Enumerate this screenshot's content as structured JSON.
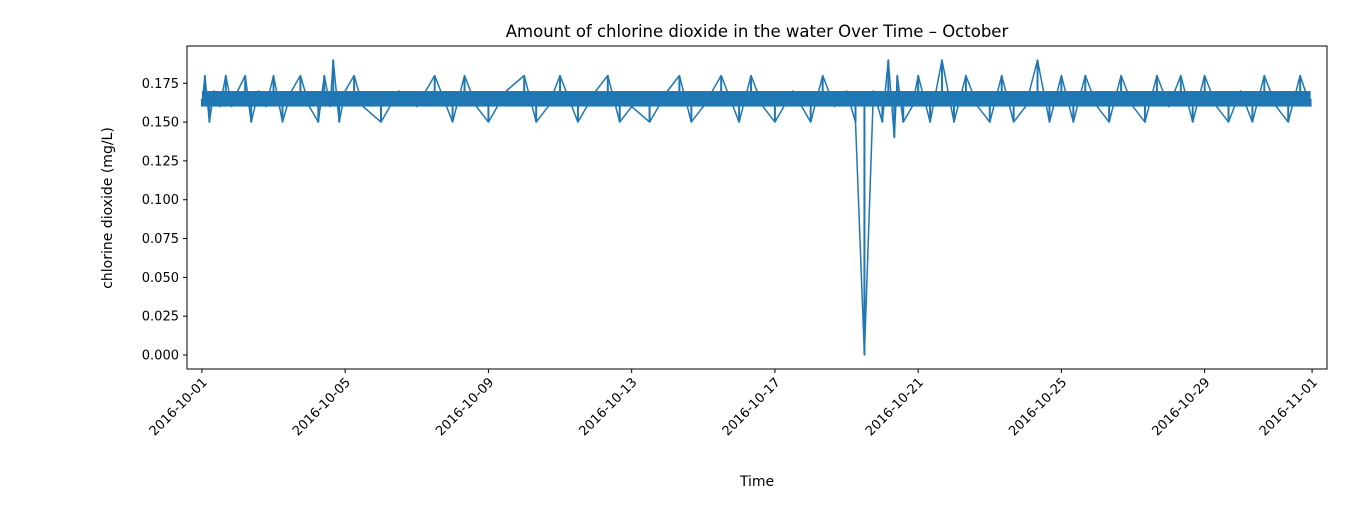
{
  "chart_data": {
    "type": "line",
    "title": "Amount of chlorine dioxide in the water Over Time – October",
    "xlabel": "Time",
    "ylabel": "chlorine dioxide (mg/L)",
    "xlim": [
      "2016-09-30T14:00",
      "2016-11-01T10:00"
    ],
    "ylim": [
      -0.009,
      0.199
    ],
    "y_ticks": [
      "0.000",
      "0.025",
      "0.050",
      "0.075",
      "0.100",
      "0.125",
      "0.150",
      "0.175"
    ],
    "x_ticks": [
      "2016-10-01",
      "2016-10-05",
      "2016-10-09",
      "2016-10-13",
      "2016-10-17",
      "2016-10-21",
      "2016-10-25",
      "2016-10-29",
      "2016-11-01"
    ],
    "grid": false,
    "line_color": "#1f77b4",
    "series": [
      {
        "baseline_band": [
          0.16,
          0.17
        ],
        "x": [
          "2016-10-01T00:00",
          "2016-10-01T02:00",
          "2016-10-01T05:00",
          "2016-10-01T08:00",
          "2016-10-01T12:00",
          "2016-10-01T16:00",
          "2016-10-01T20:00",
          "2016-10-02T00:00",
          "2016-10-02T05:00",
          "2016-10-02T09:00",
          "2016-10-02T14:00",
          "2016-10-02T19:00",
          "2016-10-03T00:00",
          "2016-10-03T06:00",
          "2016-10-03T12:00",
          "2016-10-03T18:00",
          "2016-10-04T00:00",
          "2016-10-04T06:00",
          "2016-10-04T10:00",
          "2016-10-04T14:00",
          "2016-10-04T16:00",
          "2016-10-04T20:00",
          "2016-10-05T00:00",
          "2016-10-05T06:00",
          "2016-10-05T12:00",
          "2016-10-06T00:00",
          "2016-10-06T12:00",
          "2016-10-07T00:00",
          "2016-10-07T12:00",
          "2016-10-08T00:00",
          "2016-10-08T08:00",
          "2016-10-08T16:00",
          "2016-10-09T00:00",
          "2016-10-09T12:00",
          "2016-10-10T00:00",
          "2016-10-10T08:00",
          "2016-10-10T16:00",
          "2016-10-11T00:00",
          "2016-10-11T12:00",
          "2016-10-12T00:00",
          "2016-10-12T08:00",
          "2016-10-12T16:00",
          "2016-10-13T00:00",
          "2016-10-13T12:00",
          "2016-10-14T00:00",
          "2016-10-14T08:00",
          "2016-10-14T16:00",
          "2016-10-15T00:00",
          "2016-10-15T12:00",
          "2016-10-16T00:00",
          "2016-10-16T08:00",
          "2016-10-16T16:00",
          "2016-10-17T00:00",
          "2016-10-17T12:00",
          "2016-10-18T00:00",
          "2016-10-18T08:00",
          "2016-10-18T16:00",
          "2016-10-19T00:00",
          "2016-10-19T06:00",
          "2016-10-19T12:00",
          "2016-10-19T18:00",
          "2016-10-20T00:00",
          "2016-10-20T04:00",
          "2016-10-20T08:00",
          "2016-10-20T10:00",
          "2016-10-20T14:00",
          "2016-10-20T20:00",
          "2016-10-21T00:00",
          "2016-10-21T08:00",
          "2016-10-21T16:00",
          "2016-10-22T00:00",
          "2016-10-22T08:00",
          "2016-10-22T16:00",
          "2016-10-23T00:00",
          "2016-10-23T08:00",
          "2016-10-23T16:00",
          "2016-10-24T00:00",
          "2016-10-24T08:00",
          "2016-10-24T16:00",
          "2016-10-25T00:00",
          "2016-10-25T08:00",
          "2016-10-25T16:00",
          "2016-10-26T00:00",
          "2016-10-26T08:00",
          "2016-10-26T16:00",
          "2016-10-27T00:00",
          "2016-10-27T08:00",
          "2016-10-27T16:00",
          "2016-10-28T00:00",
          "2016-10-28T08:00",
          "2016-10-28T16:00",
          "2016-10-29T00:00",
          "2016-10-29T08:00",
          "2016-10-29T16:00",
          "2016-10-30T00:00",
          "2016-10-30T08:00",
          "2016-10-30T16:00",
          "2016-10-31T00:00",
          "2016-10-31T08:00",
          "2016-10-31T16:00",
          "2016-10-31T23:00"
        ],
        "values": [
          0.16,
          0.18,
          0.15,
          0.17,
          0.16,
          0.18,
          0.16,
          0.17,
          0.18,
          0.15,
          0.17,
          0.16,
          0.18,
          0.15,
          0.17,
          0.18,
          0.16,
          0.15,
          0.18,
          0.16,
          0.19,
          0.15,
          0.17,
          0.18,
          0.16,
          0.15,
          0.17,
          0.16,
          0.18,
          0.15,
          0.18,
          0.16,
          0.15,
          0.17,
          0.18,
          0.15,
          0.16,
          0.18,
          0.15,
          0.17,
          0.18,
          0.15,
          0.16,
          0.15,
          0.17,
          0.18,
          0.15,
          0.16,
          0.18,
          0.15,
          0.18,
          0.16,
          0.15,
          0.17,
          0.15,
          0.18,
          0.16,
          0.17,
          0.15,
          0.0,
          0.17,
          0.15,
          0.19,
          0.14,
          0.18,
          0.15,
          0.16,
          0.18,
          0.15,
          0.19,
          0.15,
          0.18,
          0.16,
          0.15,
          0.18,
          0.15,
          0.16,
          0.19,
          0.15,
          0.18,
          0.15,
          0.18,
          0.16,
          0.15,
          0.18,
          0.16,
          0.15,
          0.18,
          0.16,
          0.18,
          0.15,
          0.18,
          0.16,
          0.15,
          0.17,
          0.15,
          0.18,
          0.16,
          0.15,
          0.18,
          0.16
        ]
      }
    ]
  }
}
